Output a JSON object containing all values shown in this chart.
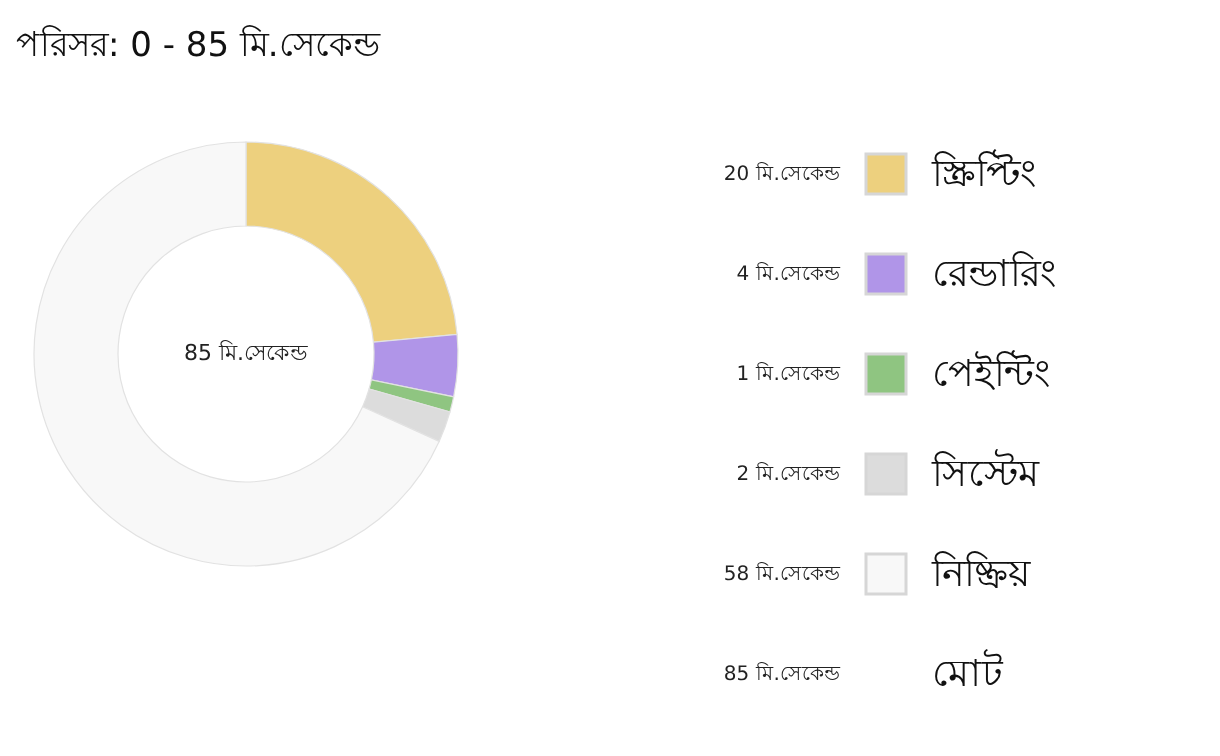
{
  "chart_data": {
    "type": "donut",
    "title": "পরিসর: 0 - 85 মি.সেকেন্ড",
    "categories": [
      "স্ক্রিপ্টিং",
      "রেন্ডারিং",
      "পেইন্টিং",
      "সিস্টেম",
      "নিষ্ক্রিয়"
    ],
    "values": [
      20,
      4,
      1,
      2,
      58
    ],
    "colors": [
      "#edd07e",
      "#b095e8",
      "#8fc581",
      "#dcdcdc",
      "#f8f8f8"
    ],
    "value_labels": [
      "20 মি.সেকেন্ড",
      "4 মি.সেকেন্ড",
      "1 মি.সেকেন্ড",
      "2 মি.সেকেন্ড",
      "58 মি.সেকেন্ড"
    ],
    "annotations": [
      "85 মি.সেকেন্ড",
      "মোট",
      "85 মি.সেকেন্ড"
    ],
    "legend": "right"
  }
}
